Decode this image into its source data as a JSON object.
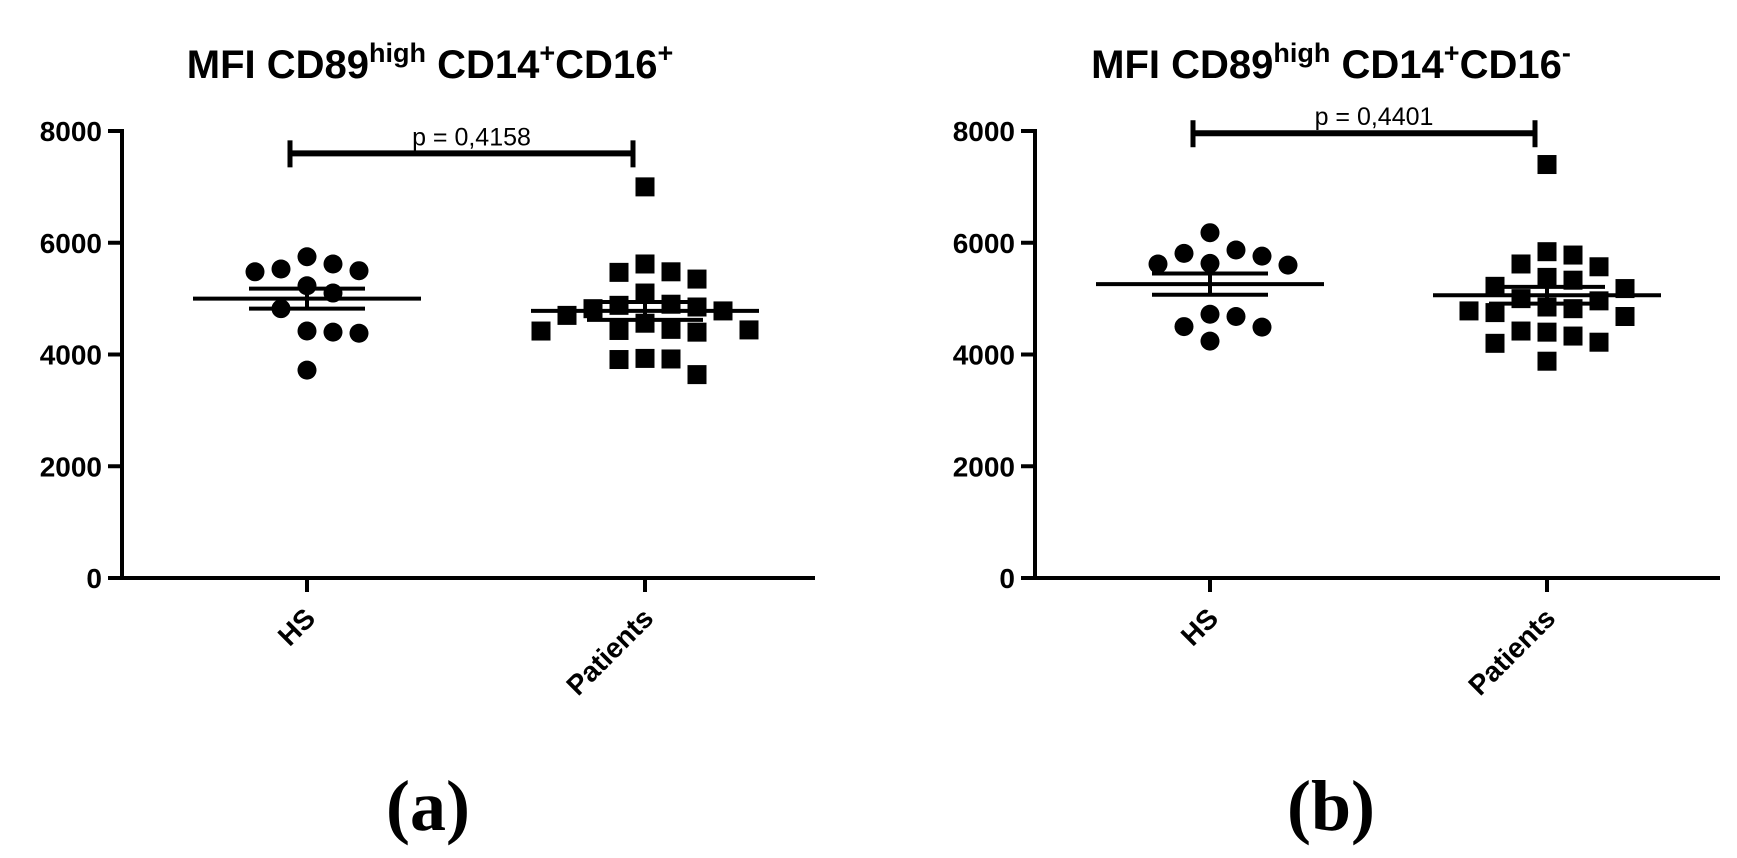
{
  "chart_data": [
    {
      "type": "scatter",
      "panel_label": "(a)",
      "title": {
        "main": "MFI CD89",
        "sup1": "high",
        "mid": " CD14",
        "sup2": "+",
        "tail": "CD16",
        "sup3": "+"
      },
      "categories": [
        "HS",
        "Patients"
      ],
      "ylim": [
        0,
        8000
      ],
      "yticks": [
        0,
        2000,
        4000,
        6000,
        8000
      ],
      "ytick_labels": [
        "0",
        "2000",
        "4000",
        "6000",
        "8000"
      ],
      "series": [
        {
          "name": "HS",
          "marker": "circle",
          "values": [
            5750,
            5620,
            5530,
            5500,
            5480,
            5230,
            5100,
            4820,
            4420,
            4400,
            4380,
            3720
          ],
          "mean": 5000,
          "sem": 180
        },
        {
          "name": "Patients",
          "marker": "square",
          "values": [
            7000,
            5620,
            5480,
            5470,
            5350,
            5100,
            4900,
            4880,
            4850,
            4820,
            4780,
            4700,
            4560,
            4450,
            4440,
            4430,
            4420,
            4400,
            3930,
            3920,
            3910,
            3640
          ],
          "mean": 4780,
          "sem": 160
        }
      ],
      "comparison": {
        "label": "p = 0,4158",
        "bracket_y": 7600
      }
    },
    {
      "type": "scatter",
      "panel_label": "(b)",
      "title": {
        "main": "MFI CD89",
        "sup1": "high",
        "mid": " CD14",
        "sup2": "+",
        "tail": "CD16",
        "sup3": "-"
      },
      "categories": [
        "HS",
        "Patients"
      ],
      "ylim": [
        0,
        8000
      ],
      "yticks": [
        0,
        2000,
        4000,
        6000,
        8000
      ],
      "ytick_labels": [
        "0",
        "2000",
        "4000",
        "6000",
        "8000"
      ],
      "series": [
        {
          "name": "HS",
          "marker": "circle",
          "values": [
            6180,
            5870,
            5810,
            5760,
            5630,
            5620,
            5600,
            4720,
            4680,
            4500,
            4490,
            4240
          ],
          "mean": 5260,
          "sem": 190
        },
        {
          "name": "Patients",
          "marker": "square",
          "values": [
            7400,
            5840,
            5780,
            5620,
            5570,
            5380,
            5330,
            5220,
            5180,
            5000,
            4960,
            4850,
            4820,
            4780,
            4750,
            4680,
            4420,
            4400,
            4330,
            4220,
            4200,
            3880
          ],
          "mean": 5060,
          "sem": 150
        }
      ],
      "comparison": {
        "label": "p = 0,4401",
        "bracket_y": 7960
      }
    }
  ]
}
